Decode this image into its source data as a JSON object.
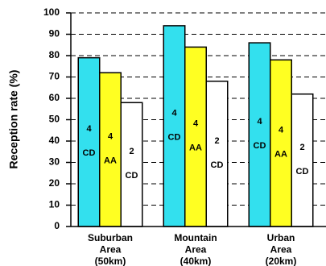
{
  "chart_data": {
    "type": "bar",
    "ylabel": "Reception rate (%)",
    "categories": [
      [
        "Suburban",
        "Area",
        "(50km)"
      ],
      [
        "Mountain",
        "Area",
        "(40km)"
      ],
      [
        "Urban",
        "Area",
        "(20km)"
      ]
    ],
    "series": [
      {
        "label_lines": [
          "4",
          "CD"
        ],
        "color": "#33e0ee",
        "values": [
          79,
          94,
          86
        ]
      },
      {
        "label_lines": [
          "4",
          "AA"
        ],
        "color": "#ffff22",
        "values": [
          72,
          84,
          78
        ]
      },
      {
        "label_lines": [
          "2",
          "CD"
        ],
        "color": "#ffffff",
        "values": [
          58,
          68,
          62
        ]
      }
    ],
    "ylim": [
      0,
      100
    ],
    "yticks": [
      0,
      10,
      20,
      30,
      40,
      50,
      60,
      70,
      80,
      90,
      100
    ],
    "grid": true
  }
}
